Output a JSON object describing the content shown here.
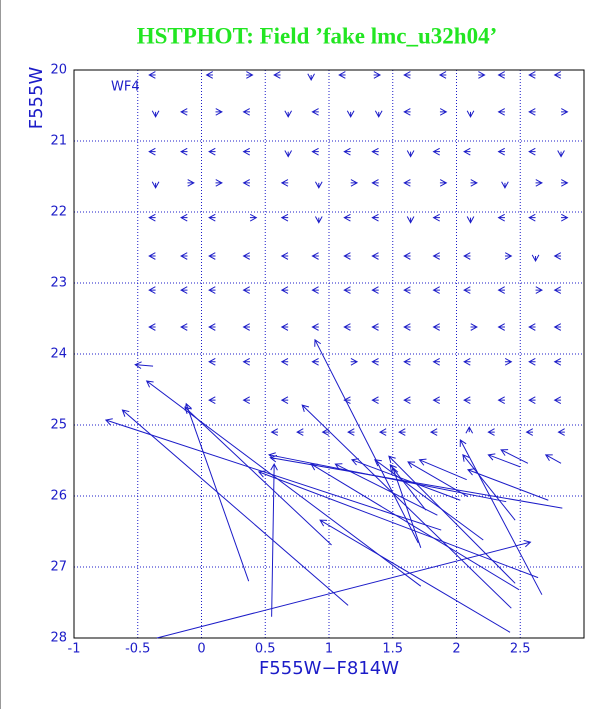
{
  "chart_data": {
    "type": "quiver",
    "title": "HSTPHOT: Field ’fake lmc_u32h04’",
    "annotation": "WF4",
    "xlabel": "F555W−F814W",
    "ylabel": "F555W",
    "color": "#1c1cc8",
    "title_color": "#22e622",
    "grid": true,
    "xlim": [
      -1,
      3
    ],
    "ylim": [
      20,
      28
    ],
    "y_inverted": true,
    "xticks": [
      -1,
      -0.5,
      0,
      0.5,
      1,
      1.5,
      2,
      2.5
    ],
    "yticks": [
      20,
      21,
      22,
      23,
      24,
      25,
      26,
      27,
      28
    ],
    "x": [
      0.37,
      0.55,
      -0.35,
      1.15,
      1.88,
      1.72,
      -0.38,
      1.7,
      2.42,
      1.02,
      2.64,
      2.43,
      2.83,
      2.39,
      2.49,
      1.85,
      2.03,
      2.21,
      2.46,
      1.76,
      2.09,
      2.08,
      1.72,
      2.67,
      2.46,
      2.72,
      2.5,
      2.56,
      2.82,
      -0.36,
      0.09,
      0.35,
      0.62,
      0.86,
      1.13,
      1.35,
      1.64,
      1.92,
      2.17,
      2.38,
      2.62,
      2.82,
      -0.36,
      -0.11,
      0.11,
      0.38,
      0.68,
      0.92,
      1.17,
      1.39,
      1.64,
      1.87,
      2.11,
      2.38,
      2.62,
      2.82,
      -0.36,
      -0.11,
      0.11,
      0.38,
      0.68,
      0.92,
      1.17,
      1.39,
      1.64,
      1.87,
      2.11,
      2.38,
      2.62,
      2.82,
      -0.36,
      -0.11,
      0.11,
      0.38,
      0.68,
      0.92,
      1.17,
      1.39,
      1.64,
      1.87,
      2.11,
      2.38,
      2.62,
      2.82,
      -0.36,
      -0.11,
      0.11,
      0.38,
      0.68,
      0.92,
      1.17,
      1.39,
      1.64,
      1.87,
      2.11,
      2.38,
      2.62,
      2.82,
      -0.36,
      -0.11,
      0.11,
      0.38,
      0.68,
      0.92,
      1.17,
      1.39,
      1.64,
      1.87,
      2.11,
      2.38,
      2.62,
      2.82,
      -0.36,
      -0.11,
      0.11,
      0.38,
      0.68,
      0.92,
      1.17,
      1.39,
      1.64,
      1.87,
      2.11,
      2.38,
      2.62,
      2.82,
      -0.36,
      -0.11,
      0.11,
      0.38,
      0.68,
      0.92,
      1.17,
      1.39,
      1.64,
      1.87,
      2.11,
      2.38,
      2.62,
      2.82,
      0.11,
      0.38,
      0.68,
      0.92,
      1.17,
      1.39,
      1.64,
      1.87,
      2.11,
      2.38,
      2.62,
      2.82,
      0.11,
      0.38,
      0.68,
      1.17,
      1.39,
      1.64,
      1.87,
      2.11,
      2.38,
      2.62,
      2.82,
      0.6,
      0.8,
      1.0,
      1.2,
      1.45,
      1.6,
      1.85,
      2.1,
      2.3,
      2.6,
      2.85
    ],
    "y": [
      27.2,
      27.7,
      28,
      27.54,
      26.48,
      27.27,
      24.17,
      26.66,
      27.92,
      26.69,
      27.15,
      27.58,
      26.17,
      26.08,
      27.32,
      26.27,
      26.06,
      26.62,
      27.23,
      26.2,
      26.01,
      25.77,
      26.73,
      27.39,
      26.34,
      26.06,
      25.59,
      25.54,
      25.54,
      20.07,
      20.07,
      20.07,
      20.07,
      20.07,
      20.07,
      20.07,
      20.07,
      20.07,
      20.07,
      20.07,
      20.07,
      20.07,
      20.59,
      20.59,
      20.59,
      20.59,
      20.59,
      20.59,
      20.59,
      20.59,
      20.59,
      20.59,
      20.59,
      20.59,
      20.59,
      20.59,
      21.15,
      21.15,
      21.15,
      21.15,
      21.15,
      21.15,
      21.15,
      21.15,
      21.15,
      21.15,
      21.15,
      21.15,
      21.15,
      21.15,
      21.59,
      21.59,
      21.59,
      21.59,
      21.59,
      21.59,
      21.59,
      21.59,
      21.59,
      21.59,
      21.59,
      21.59,
      21.59,
      21.59,
      22.08,
      22.08,
      22.08,
      22.08,
      22.08,
      22.08,
      22.08,
      22.08,
      22.08,
      22.08,
      22.08,
      22.08,
      22.08,
      22.08,
      22.62,
      22.62,
      22.62,
      22.62,
      22.62,
      22.62,
      22.62,
      22.62,
      22.62,
      22.62,
      22.62,
      22.62,
      22.62,
      22.62,
      23.1,
      23.1,
      23.1,
      23.1,
      23.1,
      23.1,
      23.1,
      23.1,
      23.1,
      23.1,
      23.1,
      23.1,
      23.1,
      23.1,
      23.62,
      23.62,
      23.62,
      23.62,
      23.62,
      23.62,
      23.62,
      23.62,
      23.62,
      23.62,
      23.62,
      23.62,
      23.62,
      23.62,
      24.11,
      24.11,
      24.11,
      24.11,
      24.11,
      24.11,
      24.11,
      24.11,
      24.11,
      24.11,
      24.11,
      24.11,
      24.65,
      24.65,
      24.65,
      24.65,
      24.65,
      24.65,
      24.65,
      24.65,
      24.65,
      24.65,
      24.65,
      25.1,
      25.1,
      25.1,
      25.1,
      25.1,
      25.1,
      25.1,
      25.1,
      25.1,
      25.1,
      25.1
    ],
    "dx": [
      -0.49,
      0.02,
      2.93,
      -1.77,
      -2.63,
      -2.15,
      -0.14,
      -0.81,
      -1.49,
      -1.15,
      -2.19,
      -1.64,
      -2.29,
      -1.86,
      -1.63,
      -0.8,
      -0.85,
      -0.85,
      -0.99,
      -0.28,
      -0.47,
      -0.37,
      -0.22,
      -0.64,
      -0.41,
      -0.63,
      -0.25,
      -0.21,
      -0.12,
      -0.05,
      -0.05,
      0.05,
      -0.05,
      0,
      -0.05,
      0.05,
      -0.05,
      -0.05,
      0.05,
      -0.05,
      -0.05,
      -0.05,
      0,
      -0.05,
      0.05,
      -0.05,
      0,
      -0.05,
      0,
      0,
      -0.05,
      0.05,
      0,
      -0.05,
      -0.05,
      0.05,
      -0.05,
      -0.05,
      -0.05,
      -0.05,
      0,
      -0.05,
      -0.05,
      -0.05,
      0,
      -0.05,
      -0.05,
      -0.05,
      -0.05,
      0,
      0,
      0.05,
      0.05,
      -0.05,
      -0.05,
      0,
      0.05,
      -0.05,
      -0.05,
      0.05,
      0.05,
      0,
      0.05,
      0.05,
      -0.05,
      -0.05,
      -0.05,
      0.05,
      -0.05,
      0,
      -0.05,
      -0.05,
      0,
      -0.05,
      0,
      -0.05,
      -0.05,
      0.05,
      -0.05,
      -0.05,
      -0.05,
      -0.05,
      -0.05,
      -0.05,
      -0.05,
      -0.05,
      -0.05,
      -0.05,
      -0.05,
      0.05,
      0,
      -0.05,
      -0.05,
      -0.05,
      -0.05,
      -0.05,
      -0.05,
      -0.05,
      -0.05,
      -0.05,
      -0.05,
      -0.05,
      -0.05,
      -0.05,
      0.05,
      -0.05,
      -0.05,
      -0.05,
      -0.05,
      -0.05,
      -0.05,
      -0.05,
      -0.05,
      -0.05,
      -0.05,
      -0.05,
      0.05,
      -0.05,
      -0.05,
      -0.05,
      -0.05,
      -0.05,
      -0.05,
      -0.05,
      0.05,
      -0.05,
      -0.05,
      -0.05,
      -0.05,
      0.05,
      -0.05,
      -0.05,
      -0.05,
      -0.05,
      -0.05,
      -0.05,
      -0.05,
      -0.05,
      -0.05,
      -0.05,
      -0.05,
      -0.05,
      -0.05,
      -0.05,
      -0.05,
      -0.05,
      -0.05,
      -0.05,
      -0.05,
      -0.05,
      0,
      -0.05,
      -0.05,
      -0.05
    ],
    "dy": [
      -2.5,
      -2.15,
      -1.35,
      -2.75,
      -1.55,
      -2.89,
      -0.02,
      -2.86,
      -1.58,
      -1.94,
      -1.49,
      -2.86,
      -0.71,
      -0.66,
      -1.77,
      -0.72,
      -0.57,
      -1.13,
      -1.79,
      -0.64,
      -0.49,
      -0.28,
      -1.13,
      -2.18,
      -0.92,
      -0.43,
      -0.17,
      -0.19,
      -0.12,
      0,
      0,
      0,
      0,
      0.07,
      0,
      0,
      0,
      0,
      0,
      0,
      0,
      0,
      0.07,
      0,
      0,
      0,
      0.07,
      0,
      0.07,
      0.07,
      0,
      0,
      0.07,
      0,
      0,
      0,
      0,
      0,
      0,
      0,
      0.07,
      0,
      0,
      0,
      0.07,
      0,
      0,
      0,
      0,
      0.07,
      0.07,
      0,
      0,
      0,
      0,
      0.07,
      0,
      0,
      0,
      0,
      0,
      0.07,
      0,
      0,
      0,
      0,
      0,
      0,
      0,
      0.07,
      0,
      0,
      0.07,
      0,
      0.07,
      0,
      0,
      0,
      0,
      0,
      0,
      0,
      0,
      0,
      0,
      0,
      0,
      0,
      0,
      0,
      0.07,
      0,
      0,
      0,
      0,
      0,
      0,
      0,
      0,
      0,
      0,
      0,
      0,
      0,
      0,
      0,
      0,
      0,
      0,
      0,
      0,
      0,
      0,
      0,
      0,
      0,
      0,
      0,
      0,
      0,
      0,
      0,
      0,
      0,
      0,
      0,
      0,
      0,
      0,
      0,
      0,
      0,
      0,
      0,
      0,
      0,
      0,
      0,
      0,
      0,
      0,
      0,
      0,
      0,
      0,
      0,
      0,
      0,
      0,
      0,
      -0.07,
      0,
      0,
      0
    ]
  }
}
